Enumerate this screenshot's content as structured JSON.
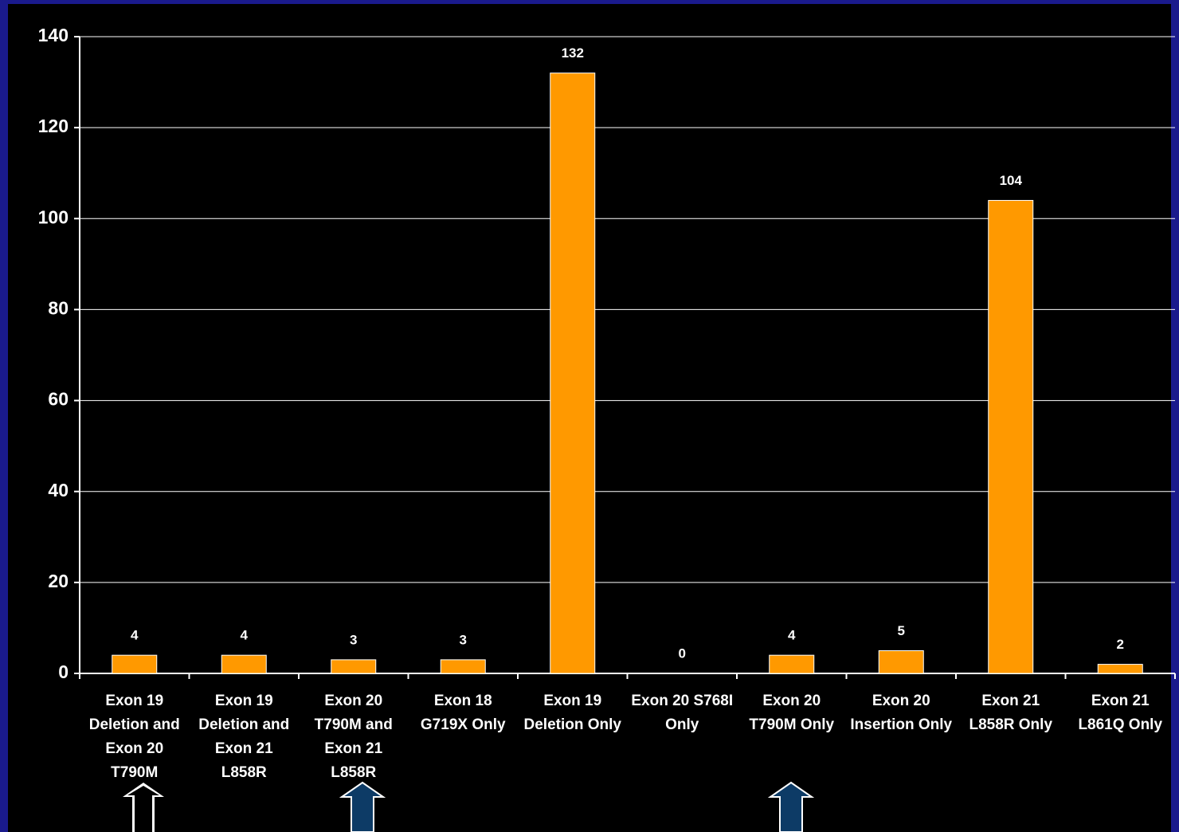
{
  "chart_data": {
    "type": "bar",
    "categories": [
      "Exon 19\nDeletion and\nExon 20\nT790M",
      "Exon 19\nDeletion and\nExon 21\nL858R",
      "Exon 20\nT790M and\nExon 21\nL858R",
      "Exon 18\nG719X Only",
      "Exon 19\nDeletion Only",
      "Exon 20 S768I\nOnly",
      "Exon 20\nT790M Only",
      "Exon 20\nInsertion Only",
      "Exon 21\nL858R Only",
      "Exon 21\nL861Q Only"
    ],
    "values": [
      4,
      4,
      3,
      3,
      132,
      0,
      4,
      5,
      104,
      2
    ],
    "color": "#ff9900",
    "ylim": [
      0,
      140
    ],
    "yticks": [
      0,
      20,
      40,
      60,
      80,
      100,
      120,
      140
    ],
    "grid": true
  }
}
